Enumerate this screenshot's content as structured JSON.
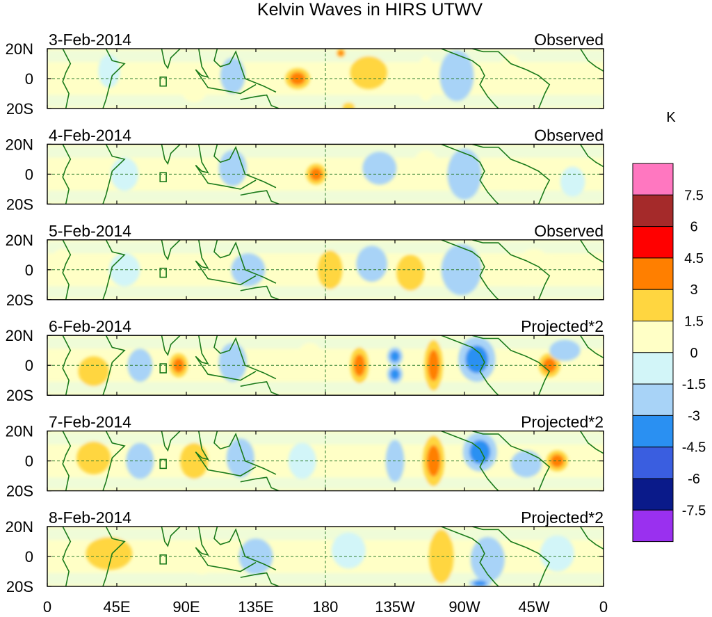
{
  "chart_data": {
    "type": "heatmap",
    "title": "Kelvin Waves in HIRS UTWV",
    "units": "K",
    "x_ticks": [
      "0",
      "45E",
      "90E",
      "135E",
      "180",
      "135W",
      "90W",
      "45W",
      "0"
    ],
    "x_range_deg": [
      0,
      360
    ],
    "y_ticks": [
      "20N",
      "0",
      "20S"
    ],
    "y_range_deg": [
      20,
      -20
    ],
    "colorbar": {
      "levels": [
        "7.5",
        "6",
        "4.5",
        "3",
        "1.5",
        "0",
        "-1.5",
        "-3",
        "-4.5",
        "-6",
        "-7.5"
      ],
      "colors": [
        "#ff77c0",
        "#a52a2a",
        "#ff0000",
        "#ff7f00",
        "#ffd640",
        "#ffffc6",
        "#d2f5f8",
        "#a8d3f7",
        "#2a90f2",
        "#3a5ee0",
        "#0a1a8a",
        "#9a30ef"
      ]
    },
    "panels": [
      {
        "date": "3-Feb-2014",
        "label": "Observed",
        "blobs": [
          {
            "lon": 162,
            "lat": 0,
            "w": 16,
            "h": 14,
            "v": 3.6
          },
          {
            "lon": 208,
            "lat": 4,
            "w": 24,
            "h": 22,
            "v": 1.5
          },
          {
            "lon": 245,
            "lat": 0,
            "w": 12,
            "h": 30,
            "v": 0.9
          },
          {
            "lon": 265,
            "lat": 2,
            "w": 22,
            "h": 34,
            "v": -1.8
          },
          {
            "lon": 300,
            "lat": 6,
            "w": 14,
            "h": 20,
            "v": 1.2
          },
          {
            "lon": 120,
            "lat": 2,
            "w": 16,
            "h": 24,
            "v": -1.6
          },
          {
            "lon": 40,
            "lat": 5,
            "w": 14,
            "h": 22,
            "v": -1.4
          },
          {
            "lon": 95,
            "lat": -8,
            "w": 16,
            "h": 16,
            "v": 1.2
          },
          {
            "lon": 190,
            "lat": 17,
            "w": 6,
            "h": 6,
            "v": 3.2
          },
          {
            "lon": 195,
            "lat": -19,
            "w": 8,
            "h": 6,
            "v": 2.8
          }
        ]
      },
      {
        "date": "4-Feb-2014",
        "label": "Observed",
        "blobs": [
          {
            "lon": 174,
            "lat": 0,
            "w": 13,
            "h": 14,
            "v": 3.8
          },
          {
            "lon": 215,
            "lat": 4,
            "w": 22,
            "h": 22,
            "v": -1.6
          },
          {
            "lon": 245,
            "lat": 6,
            "w": 16,
            "h": 20,
            "v": 1.4
          },
          {
            "lon": 270,
            "lat": 0,
            "w": 22,
            "h": 34,
            "v": -1.8
          },
          {
            "lon": 305,
            "lat": 0,
            "w": 16,
            "h": 20,
            "v": 1.3
          },
          {
            "lon": 120,
            "lat": 4,
            "w": 18,
            "h": 24,
            "v": -1.7
          },
          {
            "lon": 50,
            "lat": 0,
            "w": 18,
            "h": 22,
            "v": -1.3
          },
          {
            "lon": 340,
            "lat": -5,
            "w": 16,
            "h": 20,
            "v": -1.2
          }
        ]
      },
      {
        "date": "5-Feb-2014",
        "label": "Observed",
        "blobs": [
          {
            "lon": 183,
            "lat": 0,
            "w": 16,
            "h": 26,
            "v": 2.0
          },
          {
            "lon": 210,
            "lat": 4,
            "w": 20,
            "h": 24,
            "v": -1.7
          },
          {
            "lon": 235,
            "lat": -2,
            "w": 18,
            "h": 24,
            "v": 1.5
          },
          {
            "lon": 268,
            "lat": 0,
            "w": 26,
            "h": 34,
            "v": -1.8
          },
          {
            "lon": 315,
            "lat": 2,
            "w": 22,
            "h": 24,
            "v": 1.3
          },
          {
            "lon": 130,
            "lat": 0,
            "w": 22,
            "h": 22,
            "v": -1.5
          },
          {
            "lon": 50,
            "lat": 0,
            "w": 20,
            "h": 22,
            "v": -1.4
          },
          {
            "lon": 10,
            "lat": 4,
            "w": 16,
            "h": 20,
            "v": 1.2
          }
        ]
      },
      {
        "date": "6-Feb-2014",
        "label": "Projected*2",
        "blobs": [
          {
            "lon": 202,
            "lat": 0,
            "w": 12,
            "h": 24,
            "v": 3.4
          },
          {
            "lon": 225,
            "lat": 6,
            "w": 10,
            "h": 12,
            "v": -3.4
          },
          {
            "lon": 225,
            "lat": -6,
            "w": 10,
            "h": 12,
            "v": -3.4
          },
          {
            "lon": 250,
            "lat": 0,
            "w": 12,
            "h": 34,
            "v": 3.6
          },
          {
            "lon": 278,
            "lat": 4,
            "w": 24,
            "h": 30,
            "v": -3.2
          },
          {
            "lon": 325,
            "lat": 0,
            "w": 14,
            "h": 16,
            "v": 3.6
          },
          {
            "lon": 335,
            "lat": 10,
            "w": 20,
            "h": 14,
            "v": -2.6
          },
          {
            "lon": 85,
            "lat": 0,
            "w": 12,
            "h": 16,
            "v": 3.2
          },
          {
            "lon": 120,
            "lat": 2,
            "w": 18,
            "h": 26,
            "v": -2.2
          },
          {
            "lon": 30,
            "lat": -4,
            "w": 20,
            "h": 20,
            "v": 1.6
          },
          {
            "lon": 60,
            "lat": 0,
            "w": 16,
            "h": 22,
            "v": -1.6
          },
          {
            "lon": 170,
            "lat": 6,
            "w": 16,
            "h": 18,
            "v": 1.4
          }
        ]
      },
      {
        "date": "7-Feb-2014",
        "label": "Projected*2",
        "blobs": [
          {
            "lon": 250,
            "lat": 0,
            "w": 14,
            "h": 34,
            "v": 3.6
          },
          {
            "lon": 225,
            "lat": 0,
            "w": 12,
            "h": 28,
            "v": -1.8
          },
          {
            "lon": 280,
            "lat": 6,
            "w": 22,
            "h": 26,
            "v": -3.2
          },
          {
            "lon": 330,
            "lat": 0,
            "w": 14,
            "h": 14,
            "v": 3.4
          },
          {
            "lon": 310,
            "lat": -2,
            "w": 20,
            "h": 18,
            "v": -2.8
          },
          {
            "lon": 95,
            "lat": 0,
            "w": 18,
            "h": 24,
            "v": 1.6
          },
          {
            "lon": 125,
            "lat": 2,
            "w": 18,
            "h": 26,
            "v": -2.0
          },
          {
            "lon": 30,
            "lat": 2,
            "w": 22,
            "h": 22,
            "v": 1.6
          },
          {
            "lon": 60,
            "lat": 0,
            "w": 18,
            "h": 24,
            "v": -1.5
          },
          {
            "lon": 165,
            "lat": 0,
            "w": 18,
            "h": 24,
            "v": -1.4
          }
        ]
      },
      {
        "date": "8-Feb-2014",
        "label": "Projected*2",
        "blobs": [
          {
            "lon": 255,
            "lat": 0,
            "w": 16,
            "h": 36,
            "v": 2.4
          },
          {
            "lon": 285,
            "lat": -2,
            "w": 22,
            "h": 30,
            "v": -2.0
          },
          {
            "lon": 40,
            "lat": 2,
            "w": 30,
            "h": 22,
            "v": 1.8
          },
          {
            "lon": 100,
            "lat": 0,
            "w": 20,
            "h": 24,
            "v": 1.4
          },
          {
            "lon": 135,
            "lat": 0,
            "w": 22,
            "h": 24,
            "v": -1.5
          },
          {
            "lon": 195,
            "lat": 4,
            "w": 22,
            "h": 24,
            "v": -1.3
          },
          {
            "lon": 330,
            "lat": 2,
            "w": 22,
            "h": 24,
            "v": -1.2
          },
          {
            "lon": 280,
            "lat": -18,
            "w": 14,
            "h": 6,
            "v": -3.2
          }
        ]
      }
    ]
  }
}
